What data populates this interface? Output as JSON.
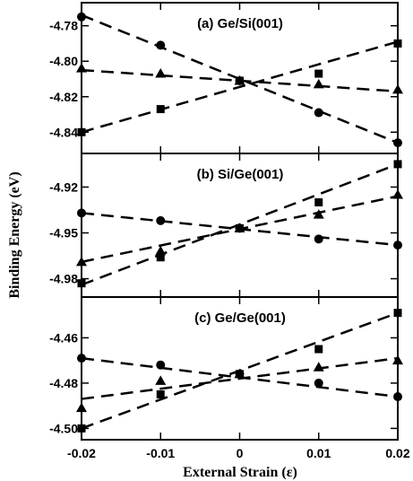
{
  "chart_data": {
    "type": "scatter",
    "xlabel": "External Strain (ε)",
    "ylabel": "Binding Energy (eV)",
    "xlim": [
      -0.02,
      0.02
    ],
    "xticks": [
      -0.02,
      -0.01,
      0,
      0.01,
      0.02
    ],
    "xtick_labels": [
      "-0.02",
      "-0.01",
      "0",
      "0.01",
      "0.02"
    ],
    "line_style": "dashed",
    "color": "#000000",
    "panels": [
      {
        "title": "(a) Ge/Si(001)",
        "ylim": [
          -4.852,
          -4.767
        ],
        "yticks": [
          -4.78,
          -4.8,
          -4.82,
          -4.84
        ],
        "ytick_labels": [
          "-4.78",
          "-4.80",
          "-4.82",
          "-4.84"
        ],
        "series": [
          {
            "marker": "circle",
            "x": [
              -0.02,
              -0.01,
              0,
              0.01,
              0.02
            ],
            "y": [
              -4.775,
              -4.791,
              -4.811,
              -4.829,
              -4.846
            ],
            "fit": [
              -4.774,
              -4.846
            ]
          },
          {
            "marker": "triangle",
            "x": [
              -0.02,
              -0.01,
              0,
              0.01,
              0.02
            ],
            "y": [
              -4.804,
              -4.807,
              -4.811,
              -4.813,
              -4.816
            ],
            "fit": [
              -4.805,
              -4.817
            ]
          },
          {
            "marker": "square",
            "x": [
              -0.02,
              -0.01,
              0,
              0.01,
              0.02
            ],
            "y": [
              -4.84,
              -4.827,
              -4.811,
              -4.807,
              -4.79
            ],
            "fit": [
              -4.84,
              -4.789
            ]
          }
        ]
      },
      {
        "title": "(b) Si/Ge(001)",
        "ylim": [
          -4.992,
          -4.898
        ],
        "yticks": [
          -4.92,
          -4.95,
          -4.98
        ],
        "ytick_labels": [
          "-4.92",
          "-4.95",
          "-4.98"
        ],
        "series": [
          {
            "marker": "circle",
            "x": [
              -0.02,
              -0.01,
              0,
              0.01,
              0.02
            ],
            "y": [
              -4.937,
              -4.942,
              -4.947,
              -4.954,
              -4.958
            ],
            "fit": [
              -4.937,
              -4.958
            ]
          },
          {
            "marker": "triangle",
            "x": [
              -0.02,
              -0.01,
              0,
              0.01,
              0.02
            ],
            "y": [
              -4.969,
              -4.962,
              -4.947,
              -4.938,
              -4.925
            ],
            "fit": [
              -4.969,
              -4.926
            ]
          },
          {
            "marker": "square",
            "x": [
              -0.02,
              -0.01,
              0,
              0.01,
              0.02
            ],
            "y": [
              -4.983,
              -4.966,
              -4.947,
              -4.93,
              -4.905
            ],
            "fit": [
              -4.984,
              -4.905
            ]
          }
        ]
      },
      {
        "title": "(c) Ge/Ge(001)",
        "ylim": [
          -4.505,
          -4.442
        ],
        "yticks": [
          -4.46,
          -4.48,
          -4.5
        ],
        "ytick_labels": [
          "-4.46",
          "-4.48",
          "-4.50"
        ],
        "series": [
          {
            "marker": "circle",
            "x": [
              -0.02,
              -0.01,
              0,
              0.01,
              0.02
            ],
            "y": [
              -4.469,
              -4.472,
              -4.476,
              -4.48,
              -4.486
            ],
            "fit": [
              -4.469,
              -4.486
            ]
          },
          {
            "marker": "triangle",
            "x": [
              -0.02,
              -0.01,
              0,
              0.01,
              0.02
            ],
            "y": [
              -4.491,
              -4.479,
              -4.476,
              -4.473,
              -4.47
            ],
            "fit": [
              -4.487,
              -4.469
            ]
          },
          {
            "marker": "square",
            "x": [
              -0.02,
              -0.01,
              0,
              0.01,
              0.02
            ],
            "y": [
              -4.5,
              -4.485,
              -4.476,
              -4.465,
              -4.449
            ],
            "fit": [
              -4.5,
              -4.449
            ]
          }
        ]
      }
    ]
  }
}
